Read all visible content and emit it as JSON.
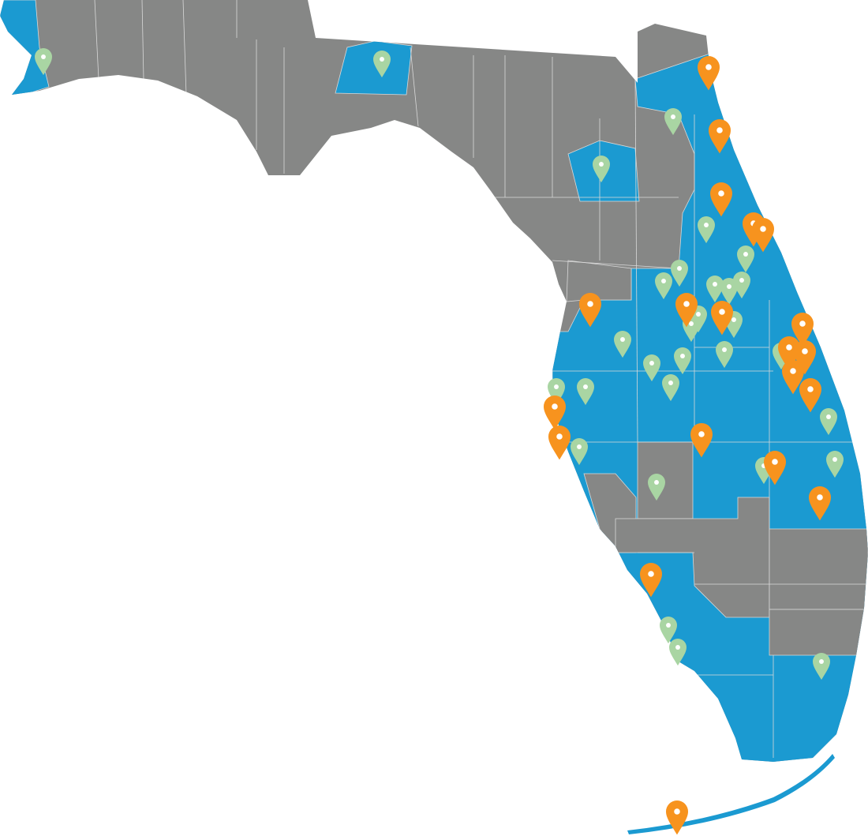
{
  "map": {
    "colors": {
      "served_county": "#1b9ad1",
      "other_county": "#868786",
      "county_border": "#d9d9d9",
      "primary_marker": "#f7931e",
      "secondary_marker": "#a9d5a3",
      "marker_dot": "#ffffff",
      "background": "#ffffff"
    },
    "marker_types": [
      "primary",
      "secondary"
    ]
  }
}
